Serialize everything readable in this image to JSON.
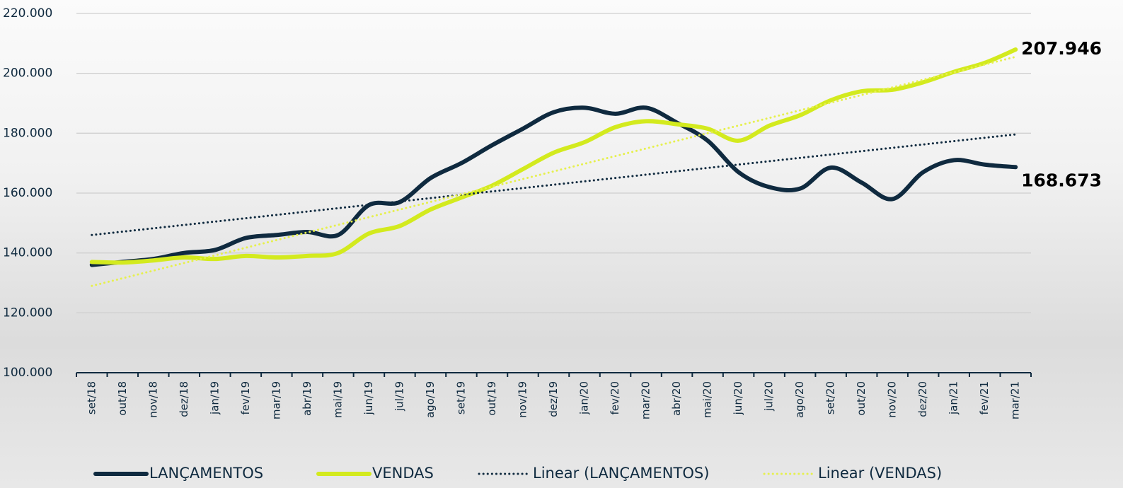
{
  "chart_data": {
    "type": "line",
    "categories": [
      "set/18",
      "out/18",
      "nov/18",
      "dez/18",
      "jan/19",
      "fev/19",
      "mar/19",
      "abr/19",
      "mai/19",
      "jun/19",
      "jul/19",
      "ago/19",
      "set/19",
      "out/19",
      "nov/19",
      "dez/19",
      "jan/20",
      "fev/20",
      "mar/20",
      "abr/20",
      "mai/20",
      "jun/20",
      "jul/20",
      "ago/20",
      "set/20",
      "out/20",
      "nov/20",
      "dez/20",
      "jan/21",
      "fev/21",
      "mar/21"
    ],
    "series": [
      {
        "name": "LANÇAMENTOS",
        "color": "#0f2a3f",
        "style": "solid",
        "values": [
          136000,
          137000,
          138000,
          140000,
          141000,
          145000,
          146000,
          147000,
          146000,
          156000,
          157000,
          165000,
          170000,
          176000,
          181500,
          187000,
          188500,
          186500,
          188500,
          183500,
          177500,
          167000,
          162000,
          161500,
          168500,
          163500,
          158000,
          167000,
          171000,
          169500,
          168673
        ],
        "value_labels": [
          null,
          null,
          null,
          null,
          null,
          null,
          null,
          null,
          null,
          null,
          null,
          null,
          null,
          null,
          null,
          null,
          null,
          null,
          null,
          null,
          null,
          null,
          null,
          null,
          null,
          null,
          null,
          null,
          null,
          null,
          "168.673"
        ]
      },
      {
        "name": "VENDAS",
        "color": "#d3ea1e",
        "style": "solid",
        "values": [
          137000,
          136800,
          137500,
          138500,
          138000,
          139000,
          138500,
          139000,
          140000,
          146500,
          149000,
          154500,
          158500,
          162500,
          168000,
          173500,
          177000,
          182000,
          184000,
          183000,
          181500,
          177500,
          182500,
          186000,
          191000,
          194000,
          194500,
          197000,
          200500,
          203500,
          207946
        ],
        "value_labels": [
          null,
          null,
          null,
          null,
          null,
          null,
          null,
          null,
          null,
          null,
          null,
          null,
          null,
          null,
          null,
          null,
          null,
          null,
          null,
          null,
          null,
          null,
          null,
          null,
          null,
          null,
          null,
          null,
          null,
          null,
          "207.946"
        ]
      },
      {
        "name": "Linear (LANÇAMENTOS)",
        "color": "#0f2a3f",
        "style": "dotted",
        "values": [
          146000,
          147120,
          148240,
          149360,
          150480,
          151600,
          152720,
          153840,
          154960,
          156080,
          157200,
          158320,
          159440,
          160560,
          161680,
          162800,
          163920,
          165040,
          166160,
          167280,
          168400,
          169520,
          170640,
          171760,
          172880,
          174000,
          175120,
          176240,
          177360,
          178480,
          179600
        ]
      },
      {
        "name": "Linear (VENDAS)",
        "color": "#e6f04e",
        "style": "dotted",
        "values": [
          129000,
          131550,
          134100,
          136650,
          139200,
          141750,
          144300,
          146850,
          149400,
          151950,
          154500,
          157050,
          159600,
          162150,
          164700,
          167250,
          169800,
          172350,
          174900,
          177450,
          180000,
          182550,
          185100,
          187650,
          190200,
          192750,
          195300,
          197850,
          200400,
          202950,
          205500
        ]
      }
    ],
    "ylim": [
      100000,
      220000
    ],
    "yticks": [
      {
        "value": 100000,
        "label": "100.000"
      },
      {
        "value": 120000,
        "label": "120.000"
      },
      {
        "value": 140000,
        "label": "140.000"
      },
      {
        "value": 160000,
        "label": "160.000"
      },
      {
        "value": 180000,
        "label": "180.000"
      },
      {
        "value": 200000,
        "label": "200.000"
      },
      {
        "value": 220000,
        "label": "220.000"
      }
    ],
    "grid": true,
    "legend": "bottom"
  }
}
